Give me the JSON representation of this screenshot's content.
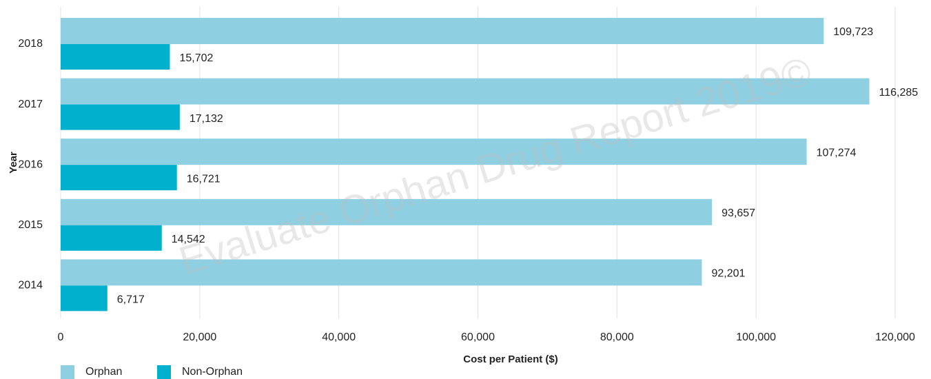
{
  "chart_data": {
    "type": "bar",
    "orientation": "horizontal",
    "watermark": "Evaluate Orphan Drug Report 2019©",
    "x_label": "Cost per Patient ($)",
    "y_label": "Year",
    "categories": [
      "2018",
      "2017",
      "2016",
      "2015",
      "2014"
    ],
    "series": [
      {
        "name": "Orphan",
        "color": "#8ecfe2",
        "values": [
          109723,
          116285,
          107274,
          93657,
          92201
        ],
        "value_labels": [
          "109,723",
          "116,285",
          "107,274",
          "93,657",
          "92,201"
        ]
      },
      {
        "name": "Non-Orphan",
        "color": "#00b0cc",
        "values": [
          15702,
          17132,
          16721,
          14542,
          6717
        ],
        "value_labels": [
          "15,702",
          "17,132",
          "16,721",
          "14,542",
          "6,717"
        ]
      }
    ],
    "xlim": [
      0,
      120000
    ],
    "xticks": [
      0,
      {
        "value": 20000,
        "label": "20,000"
      },
      {
        "value": 40000,
        "label": "40,000"
      },
      {
        "value": 60000,
        "label": "60,000"
      },
      {
        "value": 80000,
        "label": "80,000"
      },
      {
        "value": 100000,
        "label": "100,000"
      },
      {
        "value": 120000,
        "label": "120,000"
      }
    ],
    "grid": true,
    "legend": "bottom-left"
  }
}
